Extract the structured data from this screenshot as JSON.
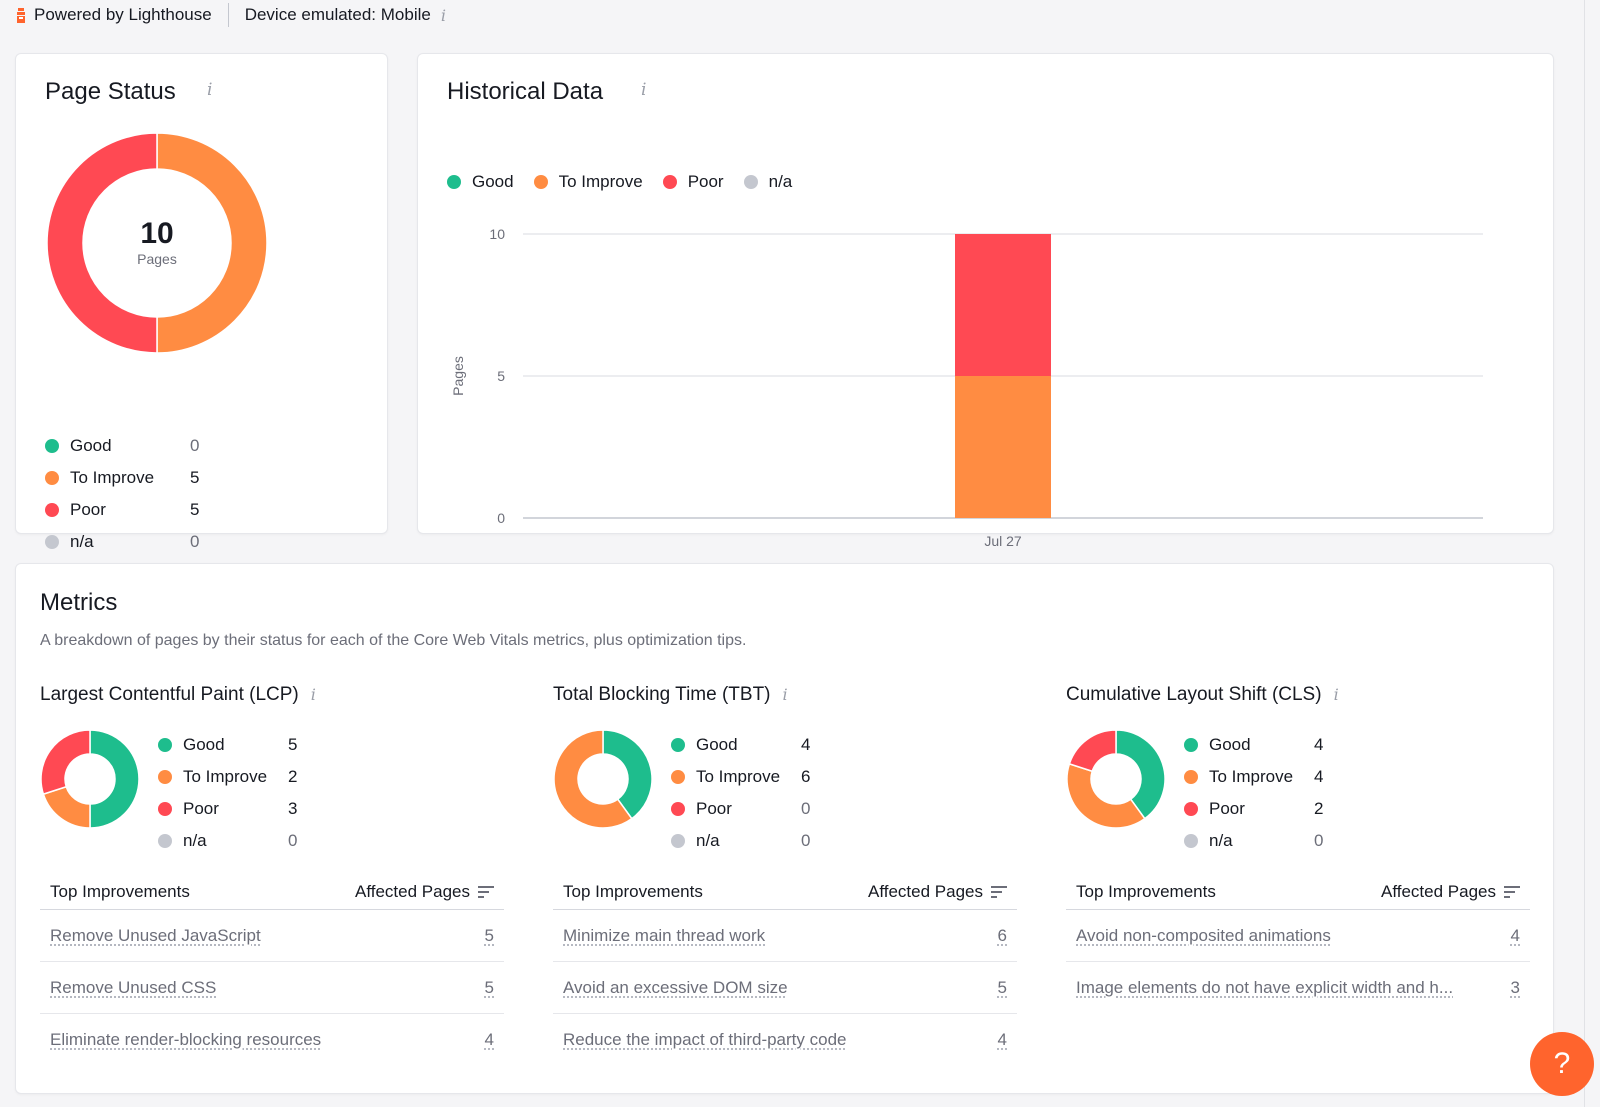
{
  "topbar": {
    "powered_by": "Powered by Lighthouse",
    "device": "Device emulated: Mobile"
  },
  "colors": {
    "good": "#1ebd8d",
    "to_improve": "#ff8c42",
    "poor": "#ff4953",
    "na": "#c4c7cf",
    "accent": "#ff642d"
  },
  "page_status": {
    "title": "Page Status",
    "total": "10",
    "total_label": "Pages",
    "legend": [
      {
        "label": "Good",
        "value": "0",
        "color": "#1ebd8d"
      },
      {
        "label": "To Improve",
        "value": "5",
        "color": "#ff8c42"
      },
      {
        "label": "Poor",
        "value": "5",
        "color": "#ff4953"
      },
      {
        "label": "n/a",
        "value": "0",
        "color": "#c4c7cf"
      }
    ]
  },
  "historical": {
    "title": "Historical Data",
    "legend": [
      {
        "label": "Good",
        "color": "#1ebd8d"
      },
      {
        "label": "To Improve",
        "color": "#ff8c42"
      },
      {
        "label": "Poor",
        "color": "#ff4953"
      },
      {
        "label": "n/a",
        "color": "#c4c7cf"
      }
    ]
  },
  "chart_data": {
    "type": "bar",
    "stacked": true,
    "ylabel": "Pages",
    "xlabel": "",
    "ylim": [
      0,
      10
    ],
    "yticks": [
      "0",
      "5",
      "10"
    ],
    "categories": [
      "Jul 27"
    ],
    "series": [
      {
        "name": "Good",
        "values": [
          0
        ],
        "color": "#1ebd8d"
      },
      {
        "name": "To Improve",
        "values": [
          5
        ],
        "color": "#ff8c42"
      },
      {
        "name": "Poor",
        "values": [
          5
        ],
        "color": "#ff4953"
      },
      {
        "name": "n/a",
        "values": [
          0
        ],
        "color": "#c4c7cf"
      }
    ],
    "grid": true,
    "legend_position": "top-left"
  },
  "metrics": {
    "title": "Metrics",
    "subtitle": "A breakdown of pages by their status for each of the Core Web Vitals metrics, plus optimization tips.",
    "table_header_left": "Top Improvements",
    "table_header_right": "Affected Pages",
    "items": [
      {
        "title": "Largest Contentful Paint (LCP)",
        "legend": [
          {
            "label": "Good",
            "value": "5"
          },
          {
            "label": "To Improve",
            "value": "2"
          },
          {
            "label": "Poor",
            "value": "3"
          },
          {
            "label": "n/a",
            "value": "0"
          }
        ],
        "improvements": [
          {
            "label": "Remove Unused JavaScript",
            "count": "5"
          },
          {
            "label": "Remove Unused CSS",
            "count": "5"
          },
          {
            "label": "Eliminate render-blocking resources",
            "count": "4"
          }
        ]
      },
      {
        "title": "Total Blocking Time (TBT)",
        "legend": [
          {
            "label": "Good",
            "value": "4"
          },
          {
            "label": "To Improve",
            "value": "6"
          },
          {
            "label": "Poor",
            "value": "0"
          },
          {
            "label": "n/a",
            "value": "0"
          }
        ],
        "improvements": [
          {
            "label": "Minimize main thread work",
            "count": "6"
          },
          {
            "label": "Avoid an excessive DOM size",
            "count": "5"
          },
          {
            "label": "Reduce the impact of third-party code",
            "count": "4"
          }
        ]
      },
      {
        "title": "Cumulative Layout Shift (CLS)",
        "legend": [
          {
            "label": "Good",
            "value": "4"
          },
          {
            "label": "To Improve",
            "value": "4"
          },
          {
            "label": "Poor",
            "value": "2"
          },
          {
            "label": "n/a",
            "value": "0"
          }
        ],
        "improvements": [
          {
            "label": "Avoid non-composited animations",
            "count": "4"
          },
          {
            "label": "Image elements do not have explicit width and h...",
            "count": "3"
          }
        ]
      }
    ]
  },
  "help": {
    "label": "?"
  }
}
